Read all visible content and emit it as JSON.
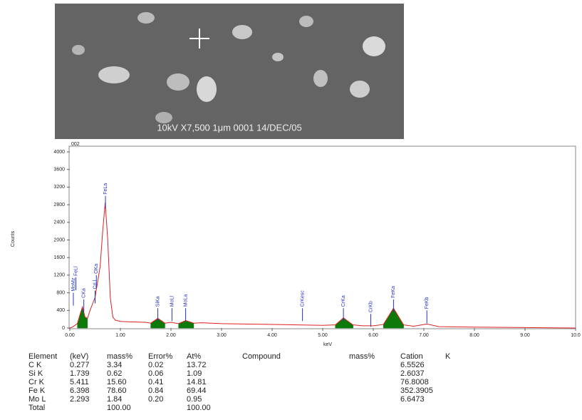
{
  "image_caption": "10kV  X7,500  1μm  0001  14/DEC/05",
  "chart_data": {
    "type": "line",
    "corner_label": "002",
    "ylabel": "Counts",
    "xlabel": "keV",
    "x": [
      0,
      0.05,
      0.1,
      0.15,
      0.2,
      0.25,
      0.3,
      0.35,
      0.4,
      0.5,
      0.6,
      0.65,
      0.7,
      0.75,
      0.8,
      0.85,
      0.9,
      1.0,
      1.2,
      1.5,
      1.6,
      1.74,
      1.88,
      2.0,
      2.15,
      2.29,
      2.45,
      2.6,
      3.0,
      4.0,
      5.0,
      5.25,
      5.41,
      5.6,
      5.8,
      6.0,
      6.2,
      6.4,
      6.6,
      6.8,
      7.06,
      7.3,
      8.0,
      9.0,
      10.0
    ],
    "series": [
      {
        "color": "#0b7a0b",
        "fill": true,
        "values": [
          null,
          null,
          null,
          100,
          300,
          480,
          250,
          220,
          null,
          null,
          null,
          null,
          null,
          null,
          null,
          null,
          null,
          null,
          null,
          null,
          110,
          220,
          110,
          null,
          100,
          170,
          110,
          null,
          null,
          null,
          null,
          70,
          230,
          70,
          null,
          null,
          80,
          450,
          70,
          null,
          null,
          null,
          null,
          null,
          null
        ]
      },
      {
        "color": "#e02020",
        "fill": false,
        "values": [
          0,
          20,
          60,
          100,
          300,
          480,
          250,
          220,
          400,
          700,
          1400,
          2200,
          2850,
          2000,
          700,
          250,
          180,
          150,
          140,
          130,
          110,
          220,
          110,
          130,
          100,
          170,
          110,
          120,
          100,
          80,
          60,
          70,
          230,
          70,
          50,
          50,
          80,
          450,
          70,
          40,
          90,
          30,
          20,
          10,
          0
        ]
      }
    ],
    "markers": [
      {
        "label": "MoMz",
        "x": 0.07,
        "height": 800
      },
      {
        "label": "FeLl",
        "x": 0.12,
        "height": 1150
      },
      {
        "label": "CKa",
        "x": 0.277,
        "height": 650
      },
      {
        "label": "CrLl",
        "x": 0.5,
        "height": 850
      },
      {
        "label": "OKa",
        "x": 0.525,
        "height": 1200
      },
      {
        "label": "FeLa",
        "x": 0.705,
        "height": 3000
      },
      {
        "label": "SiKa",
        "x": 1.74,
        "height": 450
      },
      {
        "label": "MoLl",
        "x": 2.02,
        "height": 450
      },
      {
        "label": "MoLa",
        "x": 2.29,
        "height": 450
      },
      {
        "label": "CrKesc",
        "x": 4.6,
        "height": 450
      },
      {
        "label": "CrKa",
        "x": 5.41,
        "height": 450
      },
      {
        "label": "CrKb",
        "x": 5.95,
        "height": 320
      },
      {
        "label": "FeKa",
        "x": 6.4,
        "height": 650
      },
      {
        "label": "FeKb",
        "x": 7.06,
        "height": 400
      }
    ],
    "xlim": [
      0,
      10
    ],
    "ylim": [
      0,
      4000
    ],
    "xticks": [
      {
        "value": 0,
        "label": "0.00"
      },
      {
        "value": 1,
        "label": "1.00"
      },
      {
        "value": 2,
        "label": "2.00"
      },
      {
        "value": 3,
        "label": "3.00"
      },
      {
        "value": 4,
        "label": "4.00"
      },
      {
        "value": 5,
        "label": "5.00"
      },
      {
        "value": 6,
        "label": "6.00"
      },
      {
        "value": 7,
        "label": "7.00"
      },
      {
        "value": 8,
        "label": "8.00"
      },
      {
        "value": 9,
        "label": "9.00"
      },
      {
        "value": 10,
        "label": "10.0"
      }
    ],
    "yticks": [
      0,
      400,
      800,
      1200,
      1600,
      2000,
      2400,
      2800,
      3200,
      3600,
      4000
    ]
  },
  "table": {
    "headers": [
      "Element",
      "(keV)",
      "mass%",
      "Error%",
      "At%",
      "Compound",
      "mass%",
      "Cation",
      "K"
    ],
    "rows": [
      [
        "C K",
        "0.277",
        "3.34",
        "0.02",
        "13.72",
        "6.5526"
      ],
      [
        "Si K",
        "1.739",
        "0.62",
        "0.06",
        "1.09",
        "2.6037"
      ],
      [
        "Cr K",
        "5.411",
        "15.60",
        "0.41",
        "14.81",
        "76.8008"
      ],
      [
        "Fe K",
        "6.398",
        "78.60",
        "0.84",
        "69.44",
        "352.3905"
      ],
      [
        "Mo L",
        "2.293",
        "1.84",
        "0.20",
        "0.95",
        "6.6473"
      ]
    ],
    "total": {
      "label": "Total",
      "mass": "100.00",
      "at": "100.00"
    }
  }
}
